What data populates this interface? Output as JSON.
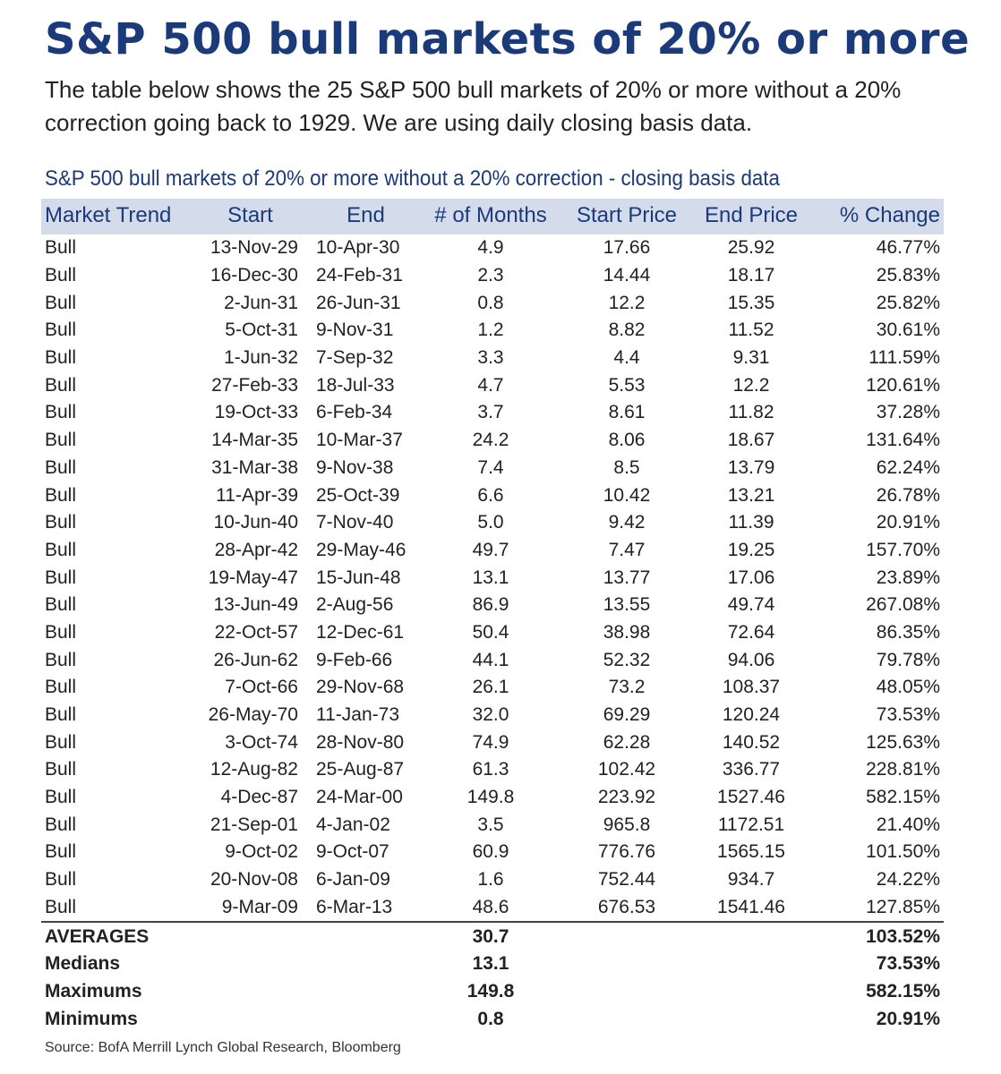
{
  "title": "S&P 500 bull markets of 20% or more",
  "intro": "The table below shows the 25 S&P 500 bull markets of 20% or more without a 20% correction going back to 1929. We are using daily closing basis data.",
  "table_title": "S&P 500 bull markets of 20% or more without a 20% correction - closing basis data",
  "columns": [
    "Market Trend",
    "Start",
    "End",
    "# of Months",
    "Start Price",
    "End Price",
    "% Change"
  ],
  "rows": [
    [
      "Bull",
      "13-Nov-29",
      "10-Apr-30",
      "4.9",
      "17.66",
      "25.92",
      "46.77%"
    ],
    [
      "Bull",
      "16-Dec-30",
      "24-Feb-31",
      "2.3",
      "14.44",
      "18.17",
      "25.83%"
    ],
    [
      "Bull",
      "2-Jun-31",
      "26-Jun-31",
      "0.8",
      "12.2",
      "15.35",
      "25.82%"
    ],
    [
      "Bull",
      "5-Oct-31",
      "9-Nov-31",
      "1.2",
      "8.82",
      "11.52",
      "30.61%"
    ],
    [
      "Bull",
      "1-Jun-32",
      "7-Sep-32",
      "3.3",
      "4.4",
      "9.31",
      "111.59%"
    ],
    [
      "Bull",
      "27-Feb-33",
      "18-Jul-33",
      "4.7",
      "5.53",
      "12.2",
      "120.61%"
    ],
    [
      "Bull",
      "19-Oct-33",
      "6-Feb-34",
      "3.7",
      "8.61",
      "11.82",
      "37.28%"
    ],
    [
      "Bull",
      "14-Mar-35",
      "10-Mar-37",
      "24.2",
      "8.06",
      "18.67",
      "131.64%"
    ],
    [
      "Bull",
      "31-Mar-38",
      "9-Nov-38",
      "7.4",
      "8.5",
      "13.79",
      "62.24%"
    ],
    [
      "Bull",
      "11-Apr-39",
      "25-Oct-39",
      "6.6",
      "10.42",
      "13.21",
      "26.78%"
    ],
    [
      "Bull",
      "10-Jun-40",
      "7-Nov-40",
      "5.0",
      "9.42",
      "11.39",
      "20.91%"
    ],
    [
      "Bull",
      "28-Apr-42",
      "29-May-46",
      "49.7",
      "7.47",
      "19.25",
      "157.70%"
    ],
    [
      "Bull",
      "19-May-47",
      "15-Jun-48",
      "13.1",
      "13.77",
      "17.06",
      "23.89%"
    ],
    [
      "Bull",
      "13-Jun-49",
      "2-Aug-56",
      "86.9",
      "13.55",
      "49.74",
      "267.08%"
    ],
    [
      "Bull",
      "22-Oct-57",
      "12-Dec-61",
      "50.4",
      "38.98",
      "72.64",
      "86.35%"
    ],
    [
      "Bull",
      "26-Jun-62",
      "9-Feb-66",
      "44.1",
      "52.32",
      "94.06",
      "79.78%"
    ],
    [
      "Bull",
      "7-Oct-66",
      "29-Nov-68",
      "26.1",
      "73.2",
      "108.37",
      "48.05%"
    ],
    [
      "Bull",
      "26-May-70",
      "11-Jan-73",
      "32.0",
      "69.29",
      "120.24",
      "73.53%"
    ],
    [
      "Bull",
      "3-Oct-74",
      "28-Nov-80",
      "74.9",
      "62.28",
      "140.52",
      "125.63%"
    ],
    [
      "Bull",
      "12-Aug-82",
      "25-Aug-87",
      "61.3",
      "102.42",
      "336.77",
      "228.81%"
    ],
    [
      "Bull",
      "4-Dec-87",
      "24-Mar-00",
      "149.8",
      "223.92",
      "1527.46",
      "582.15%"
    ],
    [
      "Bull",
      "21-Sep-01",
      "4-Jan-02",
      "3.5",
      "965.8",
      "1172.51",
      "21.40%"
    ],
    [
      "Bull",
      "9-Oct-02",
      "9-Oct-07",
      "60.9",
      "776.76",
      "1565.15",
      "101.50%"
    ],
    [
      "Bull",
      "20-Nov-08",
      "6-Jan-09",
      "1.6",
      "752.44",
      "934.7",
      "24.22%"
    ],
    [
      "Bull",
      "9-Mar-09",
      "6-Mar-13",
      "48.6",
      "676.53",
      "1541.46",
      "127.85%"
    ]
  ],
  "summary": [
    {
      "label": "AVERAGES",
      "months": "30.7",
      "change": "103.52%"
    },
    {
      "label": "Medians",
      "months": "13.1",
      "change": "73.53%"
    },
    {
      "label": "Maximums",
      "months": "149.8",
      "change": "582.15%"
    },
    {
      "label": "Minimums",
      "months": "0.8",
      "change": "20.91%"
    }
  ],
  "source": "Source: BofA Merrill Lynch Global Research, Bloomberg",
  "colors": {
    "title": "#1b3a7a",
    "header_band": "#d4dcec",
    "text": "#222222"
  }
}
